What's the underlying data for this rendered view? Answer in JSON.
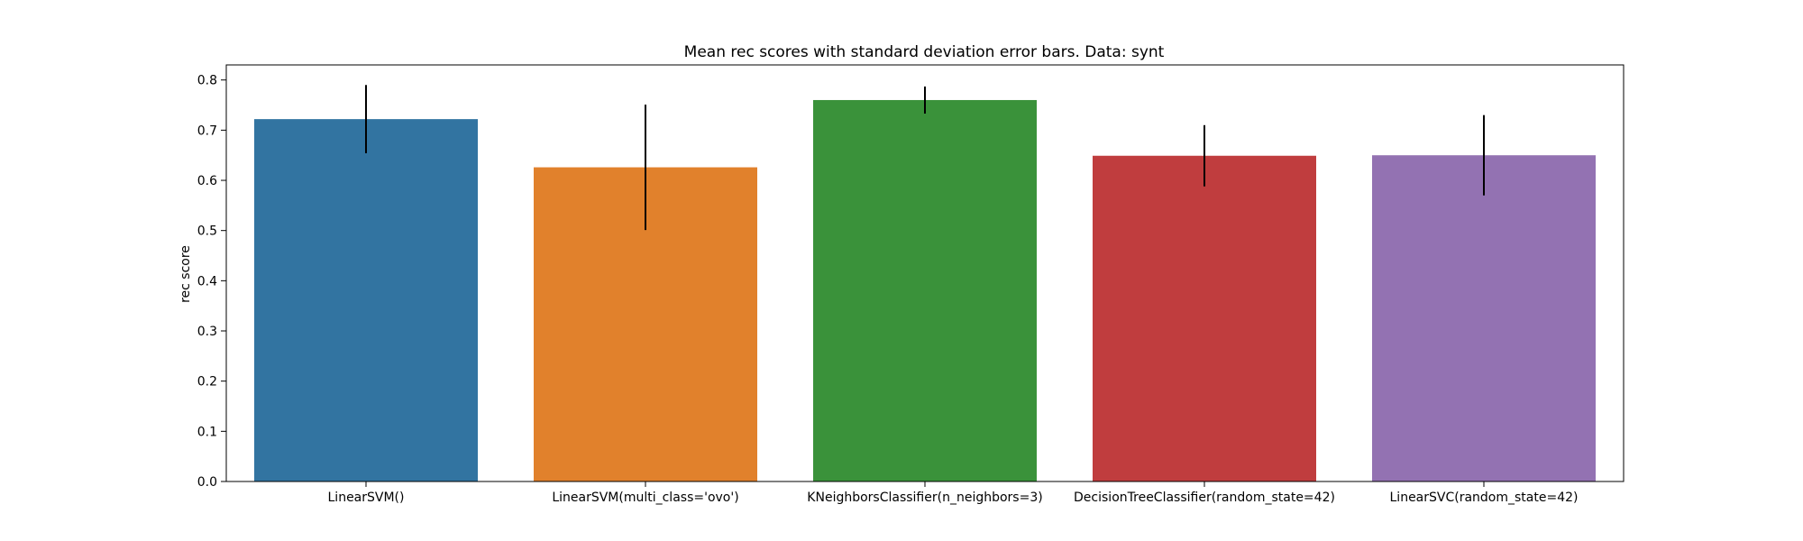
{
  "chart_data": {
    "type": "bar",
    "title": "Mean rec scores with standard deviation error bars. Data: synt",
    "xlabel": "",
    "ylabel": "rec score",
    "ylim": [
      0,
      0.83
    ],
    "yticks": [
      "0.0",
      "0.1",
      "0.2",
      "0.3",
      "0.4",
      "0.5",
      "0.6",
      "0.7",
      "0.8"
    ],
    "categories": [
      "LinearSVM()",
      "LinearSVM(multi_class='ovo')",
      "KNeighborsClassifier(n_neighbors=3)",
      "DecisionTreeClassifier(random_state=42)",
      "LinearSVC(random_state=42)"
    ],
    "values": [
      0.722,
      0.626,
      0.76,
      0.649,
      0.65
    ],
    "errors": [
      0.068,
      0.125,
      0.027,
      0.061,
      0.08
    ],
    "colors": [
      "#3274a1",
      "#e1812c",
      "#3a923a",
      "#c03d3e",
      "#9372b2"
    ],
    "grid": false,
    "legend": "none"
  }
}
